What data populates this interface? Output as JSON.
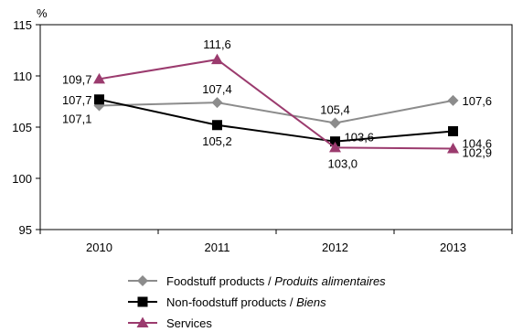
{
  "chart_data": {
    "type": "line",
    "unit": "%",
    "categories": [
      "2010",
      "2011",
      "2012",
      "2013"
    ],
    "ylim": [
      95,
      115
    ],
    "yticks": [
      "95",
      "100",
      "105",
      "110",
      "115"
    ],
    "grid": false,
    "legend_position": "bottom",
    "series": [
      {
        "name_main": "Foodstuff products / ",
        "name_italic": "Produits alimentaires",
        "color": "#8c8c8c",
        "marker": "diamond",
        "values": [
          107.1,
          107.4,
          105.4,
          107.6
        ],
        "labels": [
          "107,1",
          "107,4",
          "105,4",
          "107,6"
        ]
      },
      {
        "name_main": "Non-foodstuff products / ",
        "name_italic": "Biens",
        "color": "#000000",
        "marker": "square",
        "values": [
          107.7,
          105.2,
          103.6,
          104.6
        ],
        "labels": [
          "107,7",
          "105,2",
          "103,6",
          "104,6"
        ]
      },
      {
        "name_main": "Services",
        "name_italic": "",
        "color": "#9b3b6e",
        "marker": "triangle",
        "values": [
          109.7,
          111.6,
          103.0,
          102.9
        ],
        "labels": [
          "109,7",
          "111,6",
          "103,0",
          "102,9"
        ]
      }
    ]
  }
}
